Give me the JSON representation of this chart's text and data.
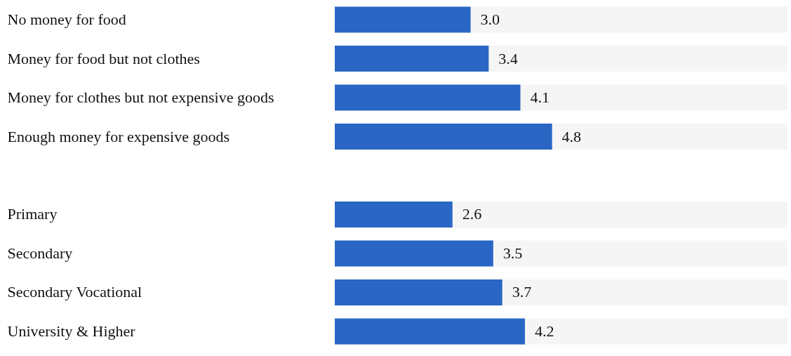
{
  "chart_data": {
    "type": "bar",
    "orientation": "horizontal",
    "categories": [
      "No money for food",
      "Money for food but not clothes",
      "Money for clothes but not expensive goods",
      "Enough money for expensive goods",
      null,
      "Primary",
      "Secondary",
      "Secondary Vocational",
      "University & Higher"
    ],
    "values": [
      3.0,
      3.4,
      4.1,
      4.8,
      null,
      2.6,
      3.5,
      3.7,
      4.2
    ],
    "value_labels": [
      "3.0",
      "3.4",
      "4.1",
      "4.8",
      null,
      "2.6",
      "3.5",
      "3.7",
      "4.2"
    ],
    "color": "#2a66c4",
    "xlim": [
      0,
      10
    ],
    "tick_labels": "y"
  }
}
